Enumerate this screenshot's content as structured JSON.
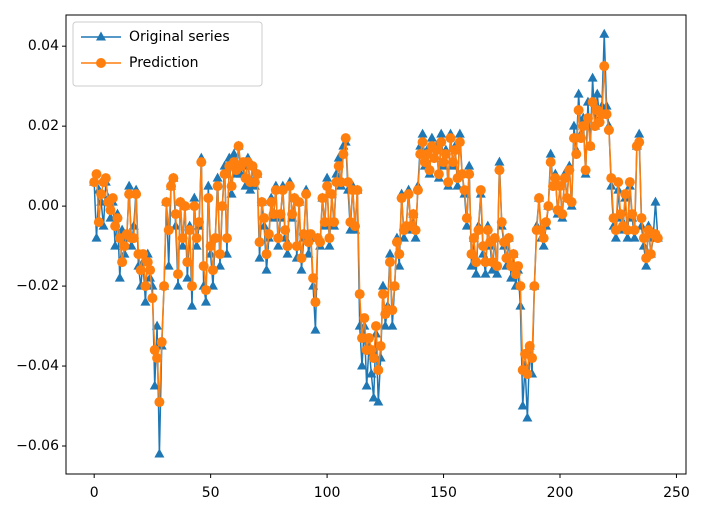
{
  "chart_data": {
    "type": "line",
    "x": [
      0,
      1,
      2,
      3,
      4,
      5,
      6,
      7,
      8,
      9,
      10,
      11,
      12,
      13,
      14,
      15,
      16,
      17,
      18,
      19,
      20,
      21,
      22,
      23,
      24,
      25,
      26,
      27,
      28,
      29,
      30,
      31,
      32,
      33,
      34,
      35,
      36,
      37,
      38,
      39,
      40,
      41,
      42,
      43,
      44,
      45,
      46,
      47,
      48,
      49,
      50,
      51,
      52,
      53,
      54,
      55,
      56,
      57,
      58,
      59,
      60,
      61,
      62,
      63,
      64,
      65,
      66,
      67,
      68,
      69,
      70,
      71,
      72,
      73,
      74,
      75,
      76,
      77,
      78,
      79,
      80,
      81,
      82,
      83,
      84,
      85,
      86,
      87,
      88,
      89,
      90,
      91,
      92,
      93,
      94,
      95,
      96,
      97,
      98,
      99,
      100,
      101,
      102,
      103,
      104,
      105,
      106,
      107,
      108,
      109,
      110,
      111,
      112,
      113,
      114,
      115,
      116,
      117,
      118,
      119,
      120,
      121,
      122,
      123,
      124,
      125,
      126,
      127,
      128,
      129,
      130,
      131,
      132,
      133,
      134,
      135,
      136,
      137,
      138,
      139,
      140,
      141,
      142,
      143,
      144,
      145,
      146,
      147,
      148,
      149,
      150,
      151,
      152,
      153,
      154,
      155,
      156,
      157,
      158,
      159,
      160,
      161,
      162,
      163,
      164,
      165,
      166,
      167,
      168,
      169,
      170,
      171,
      172,
      173,
      174,
      175,
      176,
      177,
      178,
      179,
      180,
      181,
      182,
      183,
      184,
      185,
      186,
      187,
      188,
      189,
      190,
      191,
      192,
      193,
      194,
      195,
      196,
      197,
      198,
      199,
      200,
      201,
      202,
      203,
      204,
      205,
      206,
      207,
      208,
      209,
      210,
      211,
      212,
      213,
      214,
      215,
      216,
      217,
      218,
      219,
      220,
      221,
      222,
      223,
      224,
      225,
      226,
      227,
      228,
      229,
      230,
      231,
      232,
      233,
      234,
      235,
      236,
      237,
      238,
      239,
      240,
      241,
      242
    ],
    "series": [
      {
        "name": "Original series",
        "color": "#1f77b4",
        "marker": "triangle",
        "values": [
          0.006,
          -0.008,
          0.004,
          0.001,
          -0.005,
          0.006,
          0.002,
          -0.003,
          0.001,
          -0.01,
          -0.002,
          -0.018,
          -0.006,
          -0.012,
          -0.008,
          0.005,
          -0.01,
          -0.005,
          0.004,
          -0.015,
          -0.02,
          -0.014,
          -0.024,
          -0.012,
          -0.018,
          -0.02,
          -0.045,
          -0.03,
          -0.062,
          -0.035,
          -0.02,
          0.001,
          -0.015,
          0.005,
          0.007,
          -0.005,
          -0.02,
          0.001,
          -0.01,
          0.0,
          -0.018,
          -0.005,
          -0.025,
          0.002,
          -0.01,
          -0.005,
          0.012,
          -0.02,
          -0.024,
          0.005,
          -0.012,
          -0.02,
          -0.008,
          0.007,
          -0.015,
          0.0,
          0.01,
          -0.012,
          0.012,
          0.003,
          0.013,
          0.008,
          0.015,
          0.008,
          0.01,
          0.005,
          0.012,
          0.004,
          0.01,
          0.005,
          0.008,
          -0.013,
          0.001,
          -0.005,
          -0.016,
          -0.008,
          0.002,
          -0.003,
          0.005,
          -0.01,
          -0.003,
          0.005,
          -0.008,
          -0.012,
          0.006,
          -0.003,
          0.002,
          -0.013,
          0.001,
          -0.016,
          -0.008,
          0.004,
          -0.012,
          -0.008,
          -0.02,
          -0.031,
          -0.008,
          -0.01,
          0.002,
          -0.005,
          0.007,
          -0.01,
          0.003,
          -0.005,
          0.008,
          0.012,
          0.005,
          0.015,
          0.016,
          0.004,
          -0.006,
          0.005,
          -0.006,
          0.004,
          -0.03,
          -0.04,
          -0.03,
          -0.045,
          -0.035,
          -0.042,
          -0.048,
          -0.032,
          -0.049,
          -0.038,
          -0.02,
          -0.03,
          -0.025,
          -0.012,
          -0.03,
          -0.02,
          -0.008,
          -0.015,
          0.003,
          -0.008,
          -0.005,
          0.004,
          -0.006,
          -0.002,
          -0.008,
          0.005,
          0.015,
          0.018,
          0.01,
          0.014,
          0.008,
          0.017,
          0.012,
          0.015,
          0.007,
          0.018,
          0.01,
          0.014,
          0.005,
          0.018,
          0.01,
          0.015,
          0.005,
          0.018,
          0.008,
          0.003,
          -0.005,
          0.01,
          -0.015,
          -0.008,
          -0.017,
          -0.005,
          0.003,
          -0.012,
          -0.017,
          -0.005,
          -0.01,
          -0.016,
          -0.008,
          -0.017,
          0.011,
          -0.005,
          -0.01,
          -0.015,
          -0.008,
          -0.018,
          -0.012,
          -0.02,
          -0.016,
          -0.025,
          -0.05,
          -0.04,
          -0.053,
          -0.035,
          -0.042,
          -0.02,
          -0.005,
          0.002,
          -0.008,
          -0.01,
          -0.005,
          0.0,
          0.013,
          0.005,
          0.008,
          -0.002,
          0.005,
          -0.003,
          0.008,
          0.002,
          0.01,
          0.0,
          0.02,
          0.014,
          0.028,
          0.018,
          0.022,
          0.008,
          0.026,
          0.015,
          0.032,
          0.02,
          0.028,
          0.022,
          0.025,
          0.043,
          0.025,
          0.02,
          0.005,
          -0.005,
          -0.008,
          0.004,
          -0.003,
          -0.006,
          0.002,
          -0.008,
          0.005,
          -0.003,
          -0.008,
          0.015,
          0.018,
          -0.005,
          -0.01,
          -0.015,
          -0.005,
          -0.012,
          -0.008,
          0.001,
          -0.008
        ]
      },
      {
        "name": "Prediction",
        "color": "#ff7f0e",
        "marker": "circle",
        "values": [
          0.006,
          0.008,
          -0.004,
          0.003,
          0.006,
          0.007,
          0.001,
          -0.001,
          0.002,
          -0.005,
          -0.003,
          -0.008,
          -0.014,
          -0.01,
          -0.007,
          0.003,
          -0.008,
          -0.008,
          0.003,
          -0.012,
          -0.016,
          -0.012,
          -0.02,
          -0.014,
          -0.016,
          -0.023,
          -0.036,
          -0.038,
          -0.049,
          -0.034,
          -0.02,
          0.001,
          -0.006,
          0.005,
          0.007,
          -0.002,
          -0.017,
          0.001,
          -0.008,
          0.0,
          -0.014,
          -0.006,
          -0.02,
          0.0,
          -0.008,
          -0.004,
          0.011,
          -0.015,
          -0.021,
          0.002,
          -0.01,
          -0.016,
          -0.008,
          0.005,
          -0.012,
          0.0,
          0.008,
          -0.008,
          0.01,
          0.005,
          0.011,
          0.009,
          0.015,
          0.01,
          0.011,
          0.007,
          0.011,
          0.006,
          0.01,
          0.006,
          0.008,
          -0.009,
          0.001,
          -0.003,
          -0.012,
          -0.007,
          0.001,
          -0.002,
          0.004,
          -0.008,
          -0.002,
          0.004,
          -0.006,
          -0.01,
          0.005,
          -0.002,
          0.002,
          -0.01,
          0.001,
          -0.013,
          -0.007,
          0.003,
          -0.009,
          -0.007,
          -0.018,
          -0.024,
          -0.008,
          -0.009,
          0.002,
          -0.004,
          0.005,
          -0.008,
          0.003,
          -0.004,
          0.006,
          0.01,
          0.006,
          0.013,
          0.017,
          0.006,
          -0.004,
          0.004,
          -0.005,
          0.004,
          -0.022,
          -0.033,
          -0.028,
          -0.036,
          -0.033,
          -0.036,
          -0.038,
          -0.03,
          -0.041,
          -0.035,
          -0.022,
          -0.027,
          -0.026,
          -0.014,
          -0.026,
          -0.02,
          -0.009,
          -0.012,
          0.002,
          -0.006,
          -0.005,
          0.003,
          -0.005,
          -0.002,
          -0.006,
          0.004,
          0.013,
          0.016,
          0.011,
          0.013,
          0.009,
          0.015,
          0.012,
          0.014,
          0.008,
          0.016,
          0.011,
          0.013,
          0.006,
          0.017,
          0.011,
          0.014,
          0.007,
          0.016,
          0.008,
          0.004,
          -0.003,
          0.008,
          -0.012,
          -0.008,
          -0.014,
          -0.006,
          0.004,
          -0.01,
          -0.014,
          -0.006,
          -0.009,
          -0.014,
          -0.008,
          -0.015,
          0.009,
          -0.004,
          -0.009,
          -0.013,
          -0.008,
          -0.015,
          -0.012,
          -0.017,
          -0.015,
          -0.02,
          -0.041,
          -0.037,
          -0.042,
          -0.035,
          -0.038,
          -0.02,
          -0.006,
          0.002,
          -0.006,
          -0.008,
          -0.004,
          0.0,
          0.011,
          0.005,
          0.007,
          -0.001,
          0.005,
          -0.002,
          0.007,
          0.002,
          0.009,
          0.001,
          0.017,
          0.013,
          0.024,
          0.017,
          0.02,
          0.009,
          0.022,
          0.015,
          0.026,
          0.02,
          0.024,
          0.021,
          0.023,
          0.035,
          0.023,
          0.019,
          0.007,
          -0.003,
          -0.006,
          0.006,
          -0.002,
          -0.005,
          0.003,
          -0.006,
          0.006,
          -0.002,
          -0.006,
          0.015,
          0.016,
          -0.003,
          -0.008,
          -0.013,
          -0.006,
          -0.012,
          -0.007,
          -0.007,
          -0.008
        ]
      }
    ],
    "xlim": [
      -12.1,
      254.1
    ],
    "xticks": [
      0,
      50,
      100,
      150,
      200,
      250
    ],
    "ylim": [
      -0.067,
      0.0478
    ],
    "yticks": [
      {
        "value": -0.06,
        "label": "−0.06"
      },
      {
        "value": -0.04,
        "label": "−0.04"
      },
      {
        "value": -0.02,
        "label": "−0.02"
      },
      {
        "value": 0,
        "label": "0.00"
      },
      {
        "value": 0.02,
        "label": "0.02"
      },
      {
        "value": 0.04,
        "label": "0.04"
      }
    ],
    "grid": false,
    "legend": "upper left"
  }
}
